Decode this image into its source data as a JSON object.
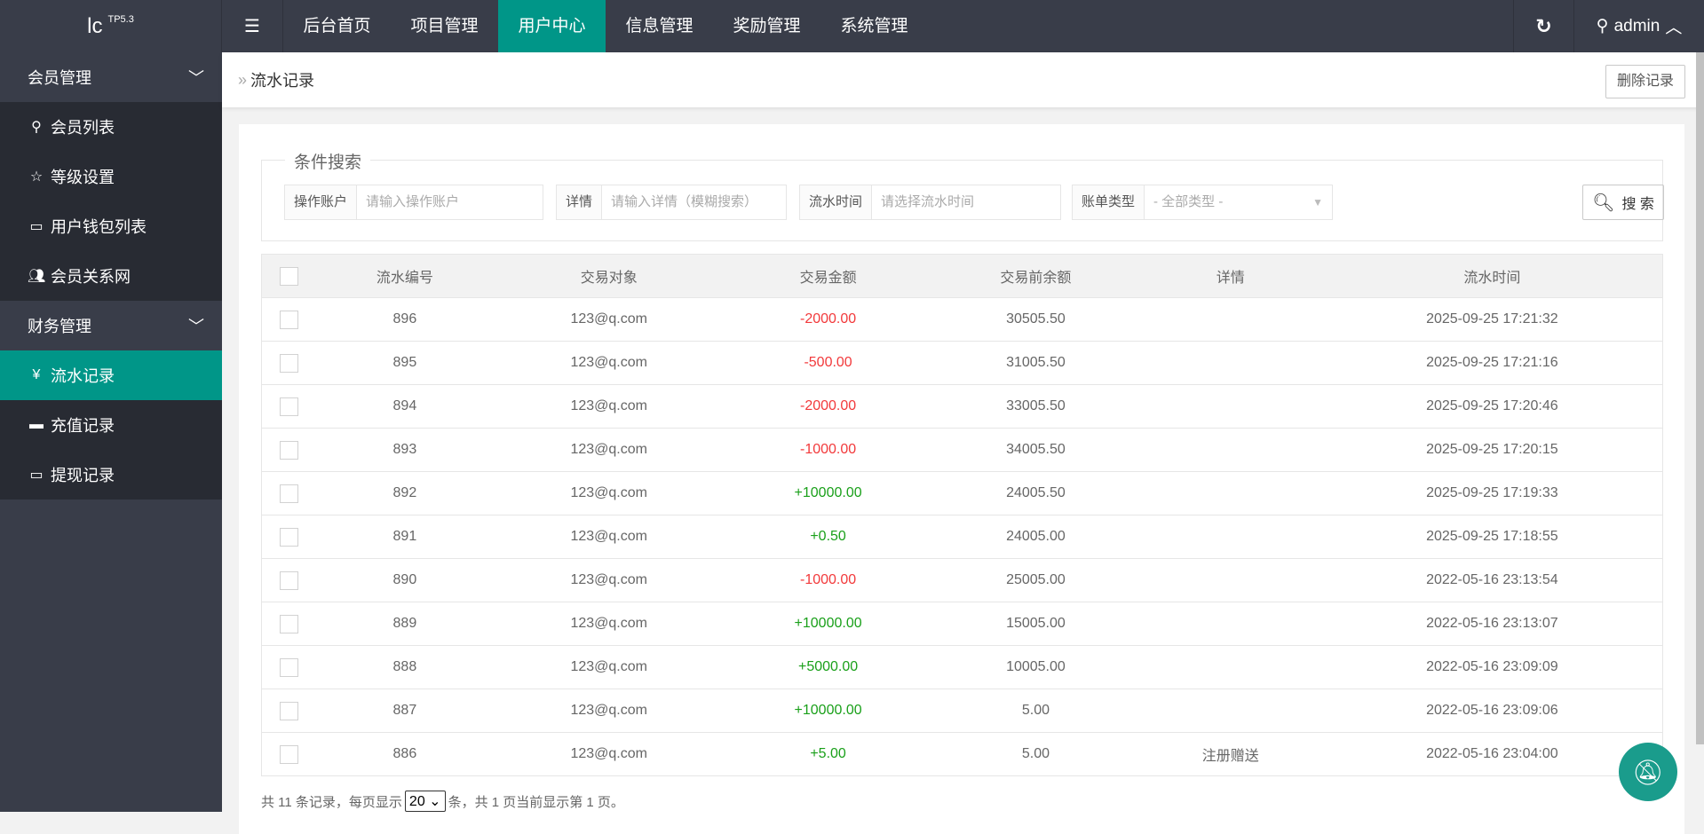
{
  "header": {
    "logo": "lc",
    "logo_sup": "TP5.3",
    "nav": [
      "后台首页",
      "项目管理",
      "用户中心",
      "信息管理",
      "奖励管理",
      "系统管理"
    ],
    "active_nav": 2,
    "user": "admin"
  },
  "sidebar": {
    "groups": [
      {
        "label": "会员管理",
        "items": [
          {
            "label": "会员列表",
            "icon": "user-icon"
          },
          {
            "label": "等级设置",
            "icon": "star-icon"
          },
          {
            "label": "用户钱包列表",
            "icon": "card-icon"
          },
          {
            "label": "会员关系网",
            "icon": "users-icon"
          }
        ]
      },
      {
        "label": "财务管理",
        "items": [
          {
            "label": "流水记录",
            "icon": "yen-icon"
          },
          {
            "label": "充值记录",
            "icon": "paypal-icon"
          },
          {
            "label": "提现记录",
            "icon": "card-icon"
          }
        ]
      }
    ],
    "active": "流水记录"
  },
  "breadcrumb": {
    "title": "流水记录",
    "delete_label": "删除记录"
  },
  "search": {
    "legend": "条件搜索",
    "fields": [
      {
        "label": "操作账户",
        "placeholder": "请输入操作账户"
      },
      {
        "label": "详情",
        "placeholder": "请输入详情（模糊搜索）"
      },
      {
        "label": "流水时间",
        "placeholder": "请选择流水时间"
      },
      {
        "label": "账单类型",
        "value": "- 全部类型 -"
      }
    ],
    "button": "搜 索"
  },
  "table": {
    "columns": [
      "流水编号",
      "交易对象",
      "交易金额",
      "交易前余额",
      "详情",
      "流水时间"
    ],
    "rows": [
      [
        "896",
        "123@q.com",
        "-2000.00",
        "30505.50",
        "",
        "2025-09-25 17:21:32"
      ],
      [
        "895",
        "123@q.com",
        "-500.00",
        "31005.50",
        "",
        "2025-09-25 17:21:16"
      ],
      [
        "894",
        "123@q.com",
        "-2000.00",
        "33005.50",
        "",
        "2025-09-25 17:20:46"
      ],
      [
        "893",
        "123@q.com",
        "-1000.00",
        "34005.50",
        "",
        "2025-09-25 17:20:15"
      ],
      [
        "892",
        "123@q.com",
        "+10000.00",
        "24005.50",
        "",
        "2025-09-25 17:19:33"
      ],
      [
        "891",
        "123@q.com",
        "+0.50",
        "24005.00",
        "",
        "2025-09-25 17:18:55"
      ],
      [
        "890",
        "123@q.com",
        "-1000.00",
        "25005.00",
        "",
        "2022-05-16 23:13:54"
      ],
      [
        "889",
        "123@q.com",
        "+10000.00",
        "15005.00",
        "",
        "2022-05-16 23:13:07"
      ],
      [
        "888",
        "123@q.com",
        "+5000.00",
        "10005.00",
        "",
        "2022-05-16 23:09:09"
      ],
      [
        "887",
        "123@q.com",
        "+10000.00",
        "5.00",
        "",
        "2022-05-16 23:09:06"
      ],
      [
        "886",
        "123@q.com",
        "+5.00",
        "5.00",
        "注册赠送",
        "2022-05-16 23:04:00"
      ]
    ]
  },
  "pagination": {
    "prefix": "共 11 条记录，每页显示",
    "page_size": "20",
    "suffix": "条，共 1 页当前显示第 1 页。"
  },
  "colors": {
    "topbar": "#393d49",
    "accent": "#009688",
    "negative": "#f2393b",
    "positive": "#1aa01a"
  }
}
